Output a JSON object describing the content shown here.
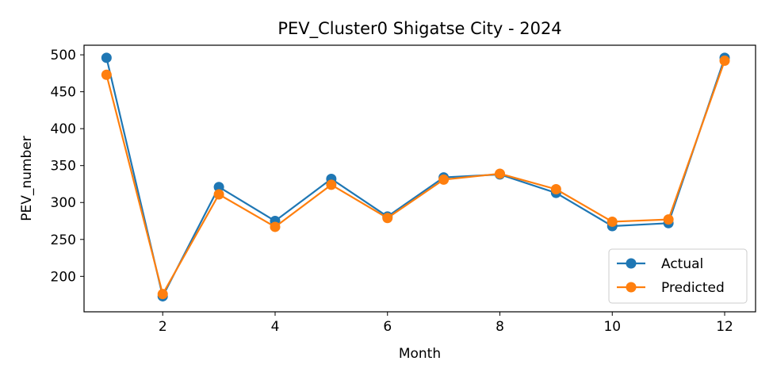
{
  "chart_data": {
    "type": "line",
    "title": "PEV_Cluster0 Shigatse City - 2024",
    "xlabel": "Month",
    "ylabel": "PEV_number",
    "xlim": [
      0.6,
      12.55
    ],
    "ylim": [
      152,
      513
    ],
    "xticks": [
      2,
      4,
      6,
      8,
      10,
      12
    ],
    "yticks": [
      200,
      250,
      300,
      350,
      400,
      450,
      500
    ],
    "grid": false,
    "legend_position": "lower right",
    "x": [
      1,
      2,
      3,
      4,
      5,
      6,
      7,
      8,
      9,
      10,
      11,
      12
    ],
    "series": [
      {
        "name": "Actual",
        "color": "#1f77b4",
        "marker": "circle",
        "values": [
          496,
          173,
          321,
          275,
          332,
          281,
          334,
          338,
          313,
          268,
          272,
          496
        ]
      },
      {
        "name": "Predicted",
        "color": "#ff7f0e",
        "marker": "circle",
        "values": [
          473,
          176,
          311,
          267,
          324,
          279,
          331,
          339,
          318,
          274,
          277,
          492
        ]
      }
    ]
  }
}
